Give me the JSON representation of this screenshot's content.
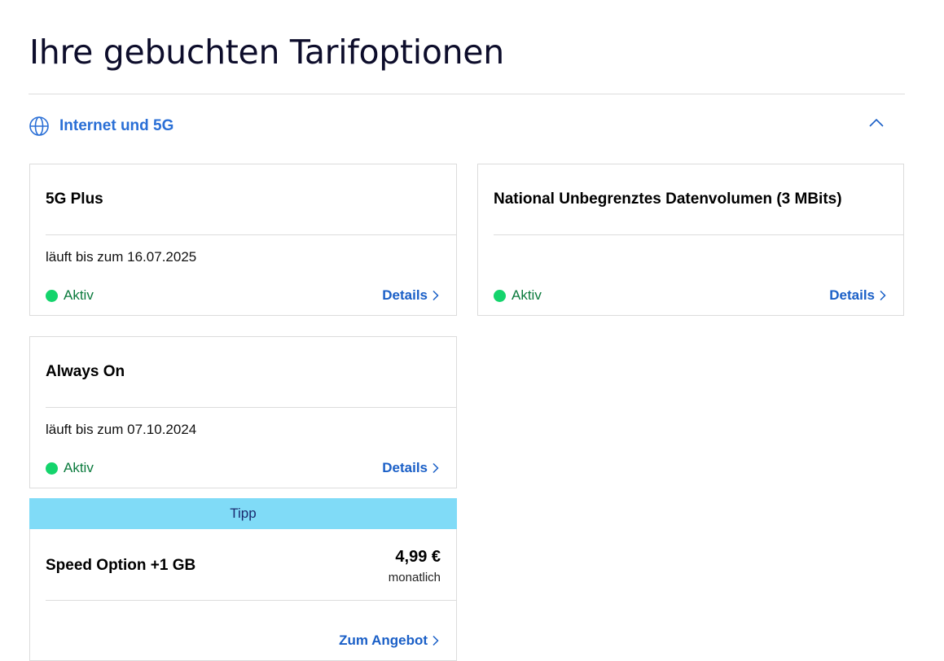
{
  "page": {
    "title": "Ihre gebuchten Tarifoptionen"
  },
  "section": {
    "icon": "globe-icon",
    "label": "Internet und 5G",
    "toggle_icon": "chevron-up-icon",
    "expanded": true
  },
  "colors": {
    "accent_blue": "#1a5fc7",
    "status_green": "#14d46c",
    "tip_banner": "#80dbf7"
  },
  "options": [
    {
      "title": "5G Plus",
      "expiry": "läuft bis zum 16.07.2025",
      "status": "Aktiv",
      "details_label": "Details"
    },
    {
      "title": "National Unbegrenztes Datenvolumen (3 MBits)",
      "expiry": "",
      "status": "Aktiv",
      "details_label": "Details"
    },
    {
      "title": "Always On",
      "expiry": "läuft bis zum 07.10.2024",
      "status": "Aktiv",
      "details_label": "Details"
    }
  ],
  "tip": {
    "banner": "Tipp",
    "title": "Speed Option +1 GB",
    "price": "4,99 €",
    "period": "monatlich",
    "cta_label": "Zum Angebot"
  }
}
